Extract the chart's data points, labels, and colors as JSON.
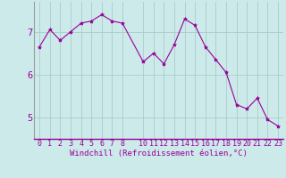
{
  "x": [
    0,
    1,
    2,
    3,
    4,
    5,
    6,
    7,
    8,
    10,
    11,
    12,
    13,
    14,
    15,
    16,
    17,
    18,
    19,
    20,
    21,
    22,
    23
  ],
  "y": [
    6.65,
    7.05,
    6.8,
    7.0,
    7.2,
    7.25,
    7.4,
    7.25,
    7.2,
    6.3,
    6.5,
    6.25,
    6.7,
    7.3,
    7.15,
    6.65,
    6.35,
    6.05,
    5.3,
    5.2,
    5.45,
    4.95,
    4.8
  ],
  "xticks": [
    0,
    1,
    2,
    3,
    4,
    5,
    6,
    7,
    8,
    10,
    11,
    12,
    13,
    14,
    15,
    16,
    17,
    18,
    19,
    20,
    21,
    22,
    23
  ],
  "yticks": [
    5,
    6,
    7
  ],
  "ylim": [
    4.5,
    7.7
  ],
  "xlim": [
    -0.5,
    23.5
  ],
  "line_color": "#990099",
  "marker": "*",
  "marker_size": 3,
  "bg_color": "#cceaea",
  "grid_color": "#aacccc",
  "xlabel": "Windchill (Refroidissement éolien,°C)",
  "xlabel_color": "#990099",
  "tick_color": "#990099",
  "axis_label_fontsize": 6.5,
  "tick_fontsize": 6.0,
  "ytick_fontsize": 7.5
}
